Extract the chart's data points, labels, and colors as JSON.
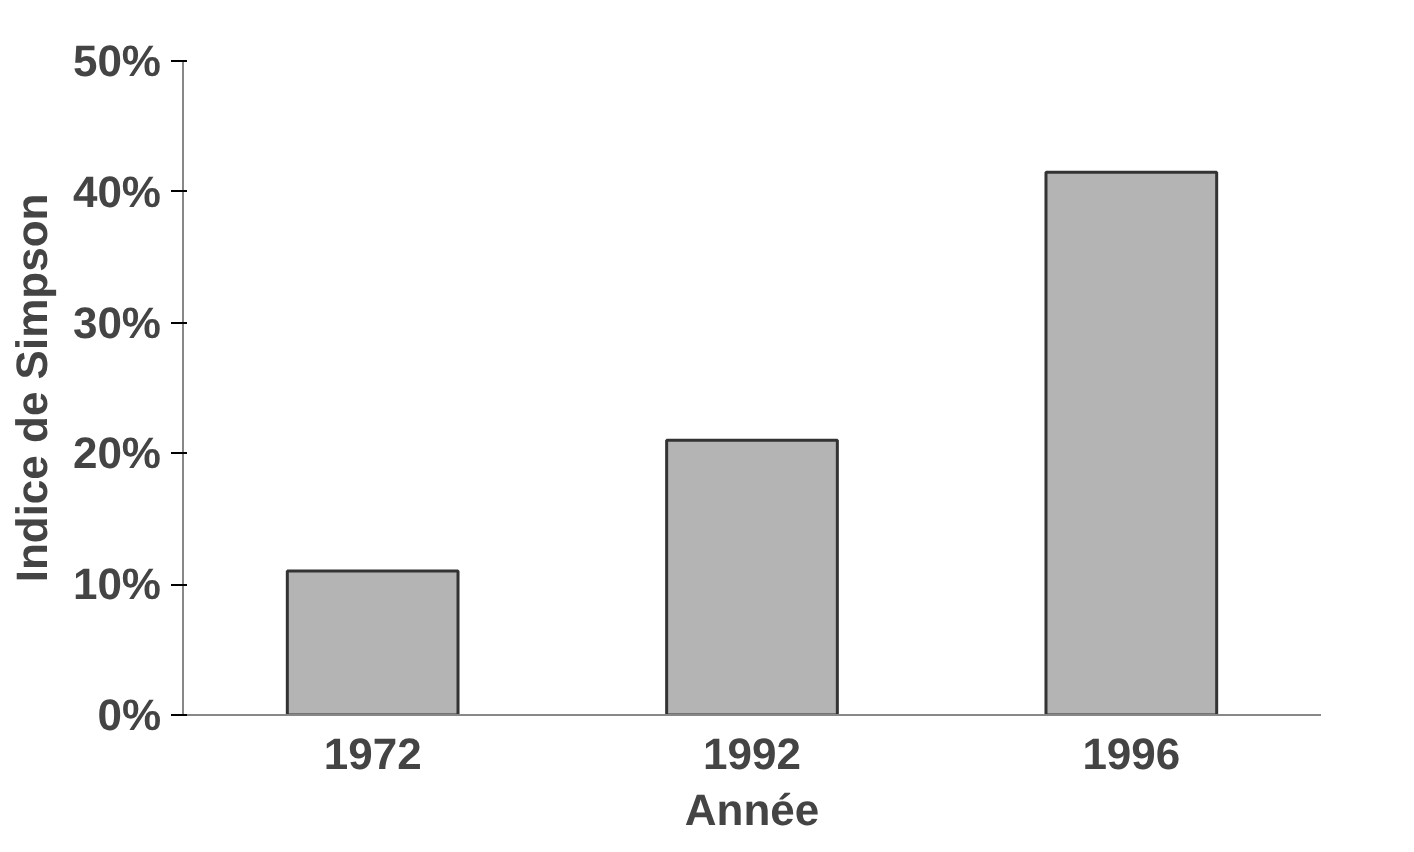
{
  "chart_data": {
    "type": "bar",
    "xlabel": "Année",
    "ylabel": "Indice de Simpson",
    "categories": [
      "1972",
      "1992",
      "1996"
    ],
    "values": [
      11,
      21,
      41.5
    ],
    "color": "#b4b4b4",
    "ylim": [
      0,
      50
    ],
    "yticks": [
      {
        "value": 0,
        "label": "0%"
      },
      {
        "value": 10,
        "label": "10%"
      },
      {
        "value": 20,
        "label": "20%"
      },
      {
        "value": 30,
        "label": "30%"
      },
      {
        "value": 40,
        "label": "40%"
      },
      {
        "value": 50,
        "label": "50%"
      }
    ],
    "grid": false
  }
}
